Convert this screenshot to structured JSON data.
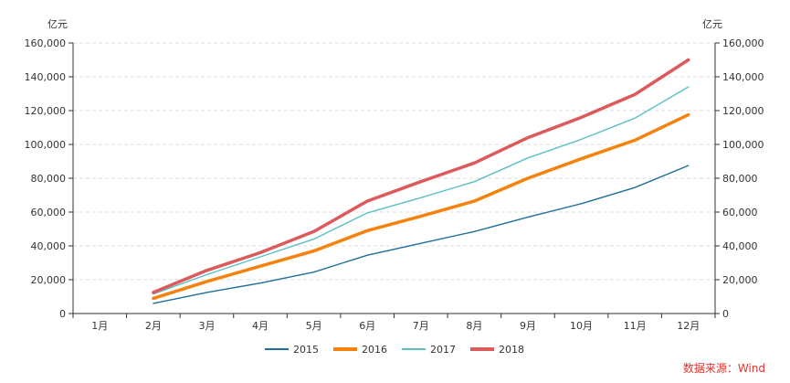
{
  "chart_data": {
    "type": "line",
    "title": "",
    "categories": [
      "1月",
      "2月",
      "3月",
      "4月",
      "5月",
      "6月",
      "7月",
      "8月",
      "9月",
      "10月",
      "11月",
      "12月"
    ],
    "left_axis_unit": "亿元",
    "right_axis_unit": "亿元",
    "ylim": [
      0,
      160000
    ],
    "y_ticks": [
      "0",
      "20,000",
      "40,000",
      "60,000",
      "80,000",
      "100,000",
      "120,000",
      "140,000",
      "160,000"
    ],
    "y_tick_values": [
      0,
      20000,
      40000,
      60000,
      80000,
      100000,
      120000,
      140000,
      160000
    ],
    "grid": "horizontal dashed",
    "legend_position": "bottom-center",
    "series": [
      {
        "name": "2015",
        "color": "#1f6f9a",
        "width": 1.4,
        "values": [
          null,
          6000,
          12500,
          18000,
          24500,
          34500,
          41500,
          48500,
          57000,
          65000,
          74500,
          87500
        ]
      },
      {
        "name": "2016",
        "color": "#f5820d",
        "width": 3.5,
        "values": [
          null,
          9000,
          19000,
          28000,
          37000,
          49000,
          57500,
          66500,
          80000,
          91500,
          102500,
          117500
        ]
      },
      {
        "name": "2017",
        "color": "#5bbfc4",
        "width": 1.4,
        "values": [
          null,
          11500,
          23000,
          33500,
          44000,
          59500,
          68500,
          78000,
          92000,
          103000,
          115500,
          134000
        ]
      },
      {
        "name": "2018",
        "color": "#dc5a5c",
        "width": 3.5,
        "values": [
          null,
          12500,
          25500,
          36000,
          48500,
          66500,
          78000,
          89000,
          104000,
          116000,
          129500,
          150000
        ]
      }
    ],
    "source_note": "数据来源：Wind"
  }
}
